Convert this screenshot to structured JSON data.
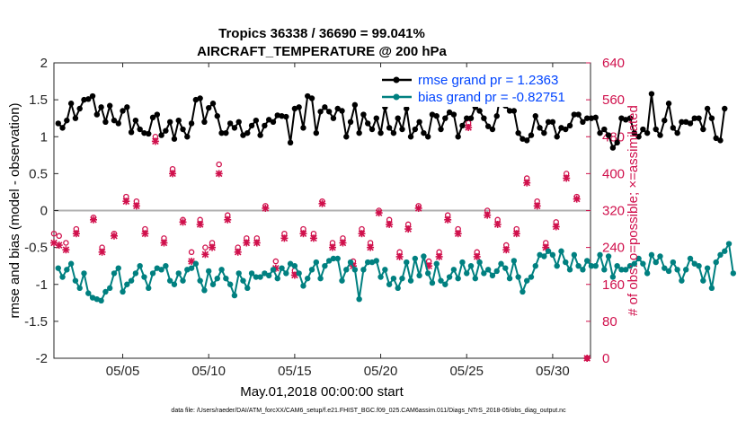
{
  "chart_data": {
    "type": "line",
    "title_line1": "Tropics 36338 / 36690 = 99.041%",
    "title_line2": "AIRCRAFT_TEMPERATURE @ 200 hPa",
    "xlabel": "May.01,2018 00:00:00 start",
    "ylabel_left": "rmse and bias (model - observation)",
    "ylabel_right": "# of obs: o=possible; ×=assimilated",
    "ylim_left": [
      -2,
      2
    ],
    "ylim_right": [
      0,
      640
    ],
    "xlim": [
      1.0,
      32.2
    ],
    "x_ticks": [
      5,
      10,
      15,
      20,
      25,
      30
    ],
    "x_tick_labels": [
      "05/05",
      "05/10",
      "05/15",
      "05/20",
      "05/25",
      "05/30"
    ],
    "y_left_ticks": [
      2,
      1.5,
      1,
      0.5,
      0,
      -0.5,
      -1,
      -1.5,
      -2
    ],
    "y_left_tick_labels": [
      "2",
      "1.5",
      "1",
      "0.5",
      "0",
      "-0.5",
      "-1",
      "-1.5",
      "-2"
    ],
    "y_right_ticks": [
      640,
      560,
      480,
      400,
      320,
      240,
      160,
      80,
      0
    ],
    "y_right_tick_labels": [
      "640",
      "560",
      "480",
      "400",
      "320",
      "240",
      "160",
      "80",
      "0"
    ],
    "zero_line": 0,
    "legend_position": "top-right",
    "series": [
      {
        "name": "rmse",
        "legend_label": "rmse grand pr = 1.2363",
        "color": "#000000",
        "axis": "left",
        "x_start": 1.25,
        "x_step": 0.25,
        "values": [
          1.18,
          1.12,
          1.22,
          1.45,
          1.25,
          1.38,
          1.5,
          1.51,
          1.55,
          1.3,
          1.4,
          1.2,
          1.42,
          1.22,
          1.18,
          1.35,
          1.4,
          1.06,
          1.22,
          1.1,
          1.05,
          1.04,
          1.26,
          1.3,
          1.02,
          1.08,
          1.2,
          0.97,
          1.22,
          1.1,
          1.0,
          1.18,
          1.5,
          1.52,
          1.2,
          1.39,
          1.45,
          1.28,
          1.05,
          1.05,
          1.18,
          1.12,
          1.2,
          1.02,
          1.05,
          1.15,
          1.22,
          1.02,
          1.15,
          1.23,
          1.2,
          1.29,
          1.28,
          1.27,
          0.92,
          1.38,
          1.4,
          1.12,
          1.55,
          1.52,
          1.05,
          1.34,
          1.4,
          1.34,
          1.25,
          1.38,
          1.35,
          1.0,
          1.2,
          1.43,
          1.05,
          1.3,
          1.18,
          1.1,
          1.25,
          1.05,
          1.4,
          1.12,
          1.05,
          1.25,
          1.1,
          1.38,
          1.0,
          1.1,
          1.2,
          1.05,
          1.0,
          1.3,
          1.28,
          1.1,
          1.25,
          1.33,
          1.3,
          1.0,
          1.15,
          1.25,
          1.25,
          1.4,
          1.35,
          1.25,
          1.14,
          1.1,
          1.28,
          1.62,
          1.42,
          1.35,
          1.35,
          1.05,
          0.97,
          0.95,
          1.02,
          1.28,
          1.12,
          1.05,
          1.2,
          1.2,
          1.0,
          1.12,
          1.1,
          1.15,
          1.3,
          1.3,
          1.2,
          1.25,
          1.25,
          1.26,
          1.05,
          1.1,
          1.02,
          0.85,
          0.92,
          1.25,
          1.23,
          1.25,
          1.05,
          1.0,
          1.1,
          1.05,
          1.58,
          1.1,
          1.02,
          1.22,
          1.45,
          1.12,
          1.05,
          1.2,
          1.2,
          1.18,
          1.25,
          1.25,
          1.1,
          1.38,
          1.25,
          0.98,
          0.95,
          1.38
        ]
      },
      {
        "name": "bias",
        "legend_label": "bias grand pr = -0.82751",
        "color": "#008080",
        "axis": "left",
        "x_start": 1.25,
        "x_step": 0.25,
        "values": [
          -0.78,
          -0.9,
          -0.8,
          -0.72,
          -0.95,
          -1.05,
          -0.85,
          -1.12,
          -1.18,
          -1.2,
          -1.22,
          -1.1,
          -1.05,
          -0.85,
          -0.78,
          -1.1,
          -1.0,
          -0.95,
          -0.85,
          -0.75,
          -0.9,
          -1.05,
          -0.85,
          -0.78,
          -0.8,
          -0.75,
          -0.95,
          -1.0,
          -0.85,
          -0.95,
          -0.8,
          -0.78,
          -0.72,
          -0.95,
          -1.08,
          -0.82,
          -1.0,
          -0.92,
          -0.8,
          -0.92,
          -1.0,
          -1.15,
          -0.85,
          -0.95,
          -1.05,
          -0.85,
          -0.9,
          -0.9,
          -0.85,
          -0.88,
          -0.8,
          -0.92,
          -0.78,
          -0.85,
          -0.72,
          -0.75,
          -0.85,
          -1.02,
          -0.92,
          -0.8,
          -0.7,
          -0.92,
          -0.75,
          -0.68,
          -0.65,
          -0.65,
          -0.95,
          -0.8,
          -0.7,
          -0.8,
          -1.2,
          -0.8,
          -0.7,
          -0.7,
          -0.68,
          -0.9,
          -0.8,
          -1.0,
          -0.92,
          -1.05,
          -0.92,
          -0.7,
          -0.95,
          -0.65,
          -0.88,
          -0.62,
          -0.85,
          -0.98,
          -0.72,
          -0.95,
          -1.0,
          -0.9,
          -0.8,
          -0.92,
          -0.7,
          -0.85,
          -0.75,
          -0.92,
          -0.7,
          -0.85,
          -0.8,
          -0.88,
          -0.82,
          -0.72,
          -0.78,
          -0.92,
          -0.68,
          -0.9,
          -1.1,
          -0.95,
          -0.9,
          -0.75,
          -0.6,
          -0.62,
          -0.55,
          -0.6,
          -0.75,
          -0.55,
          -0.7,
          -0.8,
          -0.6,
          -0.75,
          -0.8,
          -0.68,
          -0.75,
          -0.75,
          -0.6,
          -0.8,
          -0.62,
          -0.9,
          -0.75,
          -0.8,
          -0.8,
          -0.75,
          -0.72,
          -0.65,
          -0.72,
          -0.85,
          -0.6,
          -0.7,
          -0.62,
          -0.78,
          -0.82,
          -0.7,
          -0.8,
          -0.95,
          -0.8,
          -0.65,
          -0.72,
          -0.75,
          -0.95,
          -0.78,
          -1.05,
          -0.7,
          -0.6,
          -0.55,
          -0.45,
          -0.85
        ]
      },
      {
        "name": "obs possible",
        "color": "#d0104c",
        "axis": "right",
        "marker": "o",
        "x": [
          1.0,
          1.3,
          1.7,
          2.3,
          3.3,
          3.8,
          4.5,
          5.2,
          5.8,
          6.3,
          6.9,
          7.4,
          7.9,
          8.5,
          9.0,
          9.5,
          9.8,
          10.2,
          10.6,
          11.1,
          11.7,
          12.2,
          12.8,
          13.3,
          13.9,
          14.4,
          15.0,
          15.5,
          16.1,
          16.6,
          17.2,
          17.8,
          18.4,
          18.9,
          19.4,
          19.9,
          20.5,
          21.1,
          21.6,
          22.2,
          22.8,
          23.4,
          23.9,
          24.5,
          25.1,
          25.6,
          26.2,
          26.8,
          27.3,
          27.9,
          28.5,
          29.1,
          29.6,
          30.2,
          30.8,
          31.4,
          32.0
        ],
        "values": [
          270,
          265,
          250,
          280,
          305,
          240,
          270,
          350,
          340,
          280,
          480,
          260,
          410,
          300,
          230,
          300,
          240,
          250,
          420,
          310,
          240,
          260,
          260,
          330,
          210,
          270,
          190,
          280,
          270,
          340,
          250,
          260,
          210,
          280,
          250,
          320,
          300,
          230,
          290,
          330,
          210,
          230,
          310,
          280,
          510,
          230,
          320,
          300,
          245,
          280,
          390,
          340,
          250,
          295,
          400,
          350,
          0
        ]
      },
      {
        "name": "obs assimilated",
        "color": "#d0104c",
        "axis": "right",
        "marker": "x",
        "x": [
          1.0,
          1.3,
          1.7,
          2.3,
          3.3,
          3.8,
          4.5,
          5.2,
          5.8,
          6.3,
          6.9,
          7.4,
          7.9,
          8.5,
          9.0,
          9.5,
          9.8,
          10.2,
          10.6,
          11.1,
          11.7,
          12.2,
          12.8,
          13.3,
          13.9,
          14.4,
          15.0,
          15.5,
          16.1,
          16.6,
          17.2,
          17.8,
          18.4,
          18.9,
          19.4,
          19.9,
          20.5,
          21.1,
          21.6,
          22.2,
          22.8,
          23.4,
          23.9,
          24.5,
          25.1,
          25.6,
          26.2,
          26.8,
          27.3,
          27.9,
          28.5,
          29.1,
          29.6,
          30.2,
          30.8,
          31.4,
          32.0
        ],
        "values": [
          250,
          245,
          235,
          270,
          300,
          230,
          265,
          340,
          330,
          270,
          470,
          250,
          400,
          295,
          210,
          290,
          225,
          240,
          400,
          300,
          230,
          250,
          250,
          325,
          195,
          260,
          180,
          270,
          260,
          335,
          240,
          250,
          200,
          270,
          240,
          315,
          290,
          220,
          280,
          325,
          200,
          220,
          300,
          270,
          500,
          220,
          310,
          290,
          235,
          270,
          380,
          330,
          240,
          285,
          390,
          345,
          0
        ]
      }
    ],
    "footnote": "data file: /Users/raeder/DAI/ATM_forcXX/CAM6_setup/f.e21.FHIST_BGC.f09_025.CAM6assim.011/Diags_NTrS_2018-05/obs_diag_output.nc"
  }
}
